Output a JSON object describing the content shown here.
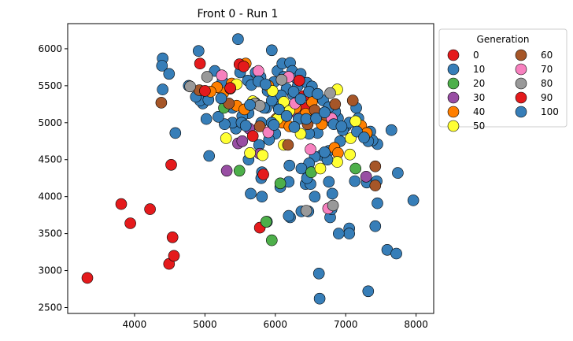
{
  "chart_data": {
    "type": "scatter",
    "title": "Front 0 - Run 1",
    "xlabel": "",
    "ylabel": "",
    "xlim": [
      3050,
      8250
    ],
    "ylim": [
      2420,
      6340
    ],
    "xticks": [
      4000,
      5000,
      6000,
      7000,
      8000
    ],
    "yticks": [
      2500,
      3000,
      3500,
      4000,
      4500,
      5000,
      5500,
      6000
    ],
    "grid": false,
    "legend": {
      "title": "Generation",
      "placement": "outside-right",
      "columns": 2
    },
    "series": [
      {
        "name": "0",
        "color": "#e41a1c",
        "points": [
          [
            3330,
            2900
          ],
          [
            3810,
            3900
          ],
          [
            3940,
            3640
          ],
          [
            4220,
            3830
          ],
          [
            4490,
            3090
          ],
          [
            4560,
            3200
          ],
          [
            4540,
            3450
          ],
          [
            4520,
            4430
          ],
          [
            6420,
            5200
          ],
          [
            5780,
            3580
          ]
        ]
      },
      {
        "name": "10",
        "color": "#377eb8",
        "points": [
          [
            6630,
            2620
          ],
          [
            6620,
            2960
          ],
          [
            7320,
            2720
          ],
          [
            7590,
            3280
          ],
          [
            7720,
            3230
          ],
          [
            7960,
            3950
          ],
          [
            7420,
            3600
          ],
          [
            7050,
            3570
          ],
          [
            7050,
            3500
          ],
          [
            6900,
            3500
          ],
          [
            6780,
            3720
          ],
          [
            6800,
            3830
          ],
          [
            6470,
            3800
          ],
          [
            6370,
            3800
          ],
          [
            6210,
            3720
          ],
          [
            6190,
            3740
          ],
          [
            5880,
            3660
          ],
          [
            5810,
            4000
          ],
          [
            5650,
            4040
          ],
          [
            5810,
            4330
          ],
          [
            5800,
            4250
          ],
          [
            6070,
            4130
          ],
          [
            6190,
            4200
          ],
          [
            6430,
            4170
          ],
          [
            6560,
            4000
          ],
          [
            6500,
            4170
          ],
          [
            6760,
            4200
          ],
          [
            6810,
            4040
          ],
          [
            7130,
            4210
          ],
          [
            7300,
            4190
          ],
          [
            7440,
            4210
          ],
          [
            7450,
            3910
          ],
          [
            7740,
            4320
          ],
          [
            7650,
            4900
          ],
          [
            7450,
            4710
          ],
          [
            7290,
            4850
          ],
          [
            7150,
            5200
          ],
          [
            7000,
            4950
          ],
          [
            6960,
            4900
          ],
          [
            6890,
            5060
          ],
          [
            6850,
            5150
          ],
          [
            6760,
            4620
          ],
          [
            6660,
            4560
          ],
          [
            6560,
            4540
          ],
          [
            6480,
            4450
          ],
          [
            6370,
            4380
          ],
          [
            6450,
            4250
          ],
          [
            6200,
            4420
          ],
          [
            6000,
            4850
          ],
          [
            5910,
            4770
          ],
          [
            5870,
            5200
          ],
          [
            5800,
            5000
          ],
          [
            5770,
            4700
          ],
          [
            5620,
            4500
          ],
          [
            5440,
            4920
          ],
          [
            5390,
            5000
          ],
          [
            5280,
            4980
          ],
          [
            5190,
            5080
          ],
          [
            5020,
            5050
          ],
          [
            4970,
            5260
          ],
          [
            4930,
            5300
          ],
          [
            4870,
            5350
          ],
          [
            4770,
            5500
          ],
          [
            4580,
            4860
          ],
          [
            4400,
            5870
          ],
          [
            4390,
            5770
          ],
          [
            4400,
            5450
          ],
          [
            4490,
            5660
          ],
          [
            4910,
            5970
          ],
          [
            5140,
            5700
          ],
          [
            5250,
            5560
          ],
          [
            5470,
            6130
          ],
          [
            5500,
            5680
          ],
          [
            5610,
            5570
          ],
          [
            5720,
            5680
          ],
          [
            5790,
            5620
          ],
          [
            5950,
            5980
          ],
          [
            6030,
            5700
          ],
          [
            6100,
            5800
          ],
          [
            6120,
            5620
          ],
          [
            6210,
            5810
          ],
          [
            6240,
            5700
          ],
          [
            6300,
            5600
          ],
          [
            6320,
            5500
          ],
          [
            6360,
            5660
          ],
          [
            6450,
            5540
          ],
          [
            6520,
            5490
          ],
          [
            6560,
            5350
          ],
          [
            6680,
            5300
          ],
          [
            6760,
            5210
          ],
          [
            6780,
            5030
          ],
          [
            6600,
            4860
          ],
          [
            6480,
            4850
          ],
          [
            5980,
            5550
          ],
          [
            5890,
            5430
          ],
          [
            5710,
            5270
          ],
          [
            5620,
            5130
          ],
          [
            5530,
            5090
          ],
          [
            5390,
            5200
          ],
          [
            5050,
            5310
          ],
          [
            5060,
            4550
          ],
          [
            6920,
            4750
          ],
          [
            7050,
            5000
          ],
          [
            7180,
            5060
          ],
          [
            7350,
            4880
          ],
          [
            7380,
            4760
          ],
          [
            7320,
            4750
          ],
          [
            6400,
            5080
          ],
          [
            6250,
            5380
          ],
          [
            6160,
            5460
          ],
          [
            6080,
            5370
          ],
          [
            6040,
            5220
          ],
          [
            5950,
            5300
          ],
          [
            5840,
            5200
          ]
        ]
      },
      {
        "name": "20",
        "color": "#4daf4a",
        "points": [
          [
            5950,
            3410
          ],
          [
            5870,
            3660
          ],
          [
            5490,
            4350
          ],
          [
            6070,
            4180
          ],
          [
            6510,
            4330
          ],
          [
            5270,
            5200
          ],
          [
            7140,
            4380
          ]
        ]
      },
      {
        "name": "30",
        "color": "#984ea3",
        "points": [
          [
            5310,
            4350
          ],
          [
            5470,
            4720
          ],
          [
            5530,
            4750
          ],
          [
            5630,
            4920
          ],
          [
            5780,
            4580
          ],
          [
            7290,
            4270
          ],
          [
            6290,
            5140
          ]
        ]
      },
      {
        "name": "40",
        "color": "#ff7f00",
        "points": [
          [
            5260,
            5400
          ],
          [
            5380,
            5530
          ],
          [
            5450,
            5230
          ],
          [
            5560,
            5180
          ],
          [
            5580,
            5800
          ],
          [
            5900,
            5500
          ],
          [
            6010,
            5050
          ],
          [
            6100,
            5000
          ],
          [
            6200,
            4950
          ],
          [
            6290,
            5200
          ],
          [
            6430,
            5120
          ],
          [
            6520,
            5280
          ],
          [
            6660,
            4980
          ],
          [
            6840,
            4660
          ],
          [
            6890,
            4590
          ],
          [
            7220,
            4960
          ],
          [
            7300,
            4860
          ],
          [
            5170,
            5480
          ],
          [
            5080,
            5420
          ]
        ]
      },
      {
        "name": "50",
        "color": "#ffff33",
        "points": [
          [
            5300,
            4790
          ],
          [
            5640,
            4590
          ],
          [
            5820,
            4560
          ],
          [
            6120,
            4700
          ],
          [
            6360,
            4850
          ],
          [
            6640,
            4380
          ],
          [
            6880,
            4470
          ],
          [
            7060,
            4570
          ],
          [
            7070,
            4790
          ],
          [
            7140,
            5020
          ],
          [
            6880,
            5450
          ],
          [
            6030,
            5050
          ],
          [
            5960,
            5430
          ],
          [
            5680,
            5290
          ],
          [
            5450,
            5520
          ],
          [
            6120,
            5280
          ],
          [
            6200,
            5160
          ]
        ]
      },
      {
        "name": "60",
        "color": "#a65628",
        "points": [
          [
            4380,
            5270
          ],
          [
            4920,
            5440
          ],
          [
            5340,
            5260
          ],
          [
            5360,
            5460
          ],
          [
            5780,
            4950
          ],
          [
            6180,
            4700
          ],
          [
            6460,
            4980
          ],
          [
            6850,
            5250
          ],
          [
            7100,
            5300
          ],
          [
            7420,
            4410
          ],
          [
            7420,
            4150
          ],
          [
            6720,
            5100
          ],
          [
            6560,
            5170
          ]
        ]
      },
      {
        "name": "70",
        "color": "#f781bf",
        "points": [
          [
            5240,
            5640
          ],
          [
            5760,
            5700
          ],
          [
            5900,
            4870
          ],
          [
            6190,
            5620
          ],
          [
            6280,
            5260
          ],
          [
            6500,
            4640
          ],
          [
            6750,
            3840
          ],
          [
            6800,
            5060
          ]
        ]
      },
      {
        "name": "80",
        "color": "#999999",
        "points": [
          [
            4790,
            5490
          ],
          [
            5030,
            5620
          ],
          [
            5710,
            5260
          ],
          [
            5780,
            5230
          ],
          [
            6090,
            5580
          ],
          [
            6440,
            3810
          ],
          [
            6820,
            3880
          ],
          [
            6780,
            5400
          ]
        ]
      },
      {
        "name": "90",
        "color": "#e41a1c",
        "points": [
          [
            4930,
            5800
          ],
          [
            5000,
            5430
          ],
          [
            5490,
            5790
          ],
          [
            5550,
            5760
          ],
          [
            5680,
            4820
          ],
          [
            5830,
            4300
          ],
          [
            6340,
            5570
          ],
          [
            6400,
            5360
          ],
          [
            5360,
            5470
          ]
        ]
      },
      {
        "name": "100",
        "color": "#377eb8",
        "points": [
          [
            5520,
            5000
          ],
          [
            5580,
            4960
          ],
          [
            5950,
            5000
          ],
          [
            6050,
            5180
          ],
          [
            6160,
            5090
          ],
          [
            6330,
            5050
          ],
          [
            6440,
            5050
          ],
          [
            6580,
            5060
          ],
          [
            6700,
            5140
          ],
          [
            6830,
            4980
          ],
          [
            6940,
            4950
          ],
          [
            7160,
            4880
          ],
          [
            7260,
            4800
          ],
          [
            5660,
            5510
          ],
          [
            5760,
            5560
          ],
          [
            5860,
            5520
          ],
          [
            6260,
            5420
          ],
          [
            6480,
            5420
          ],
          [
            6600,
            5390
          ],
          [
            5640,
            5240
          ],
          [
            5980,
            4970
          ],
          [
            5230,
            5330
          ],
          [
            6740,
            4500
          ],
          [
            6700,
            4600
          ],
          [
            6270,
            4940
          ],
          [
            6360,
            5320
          ]
        ]
      }
    ]
  }
}
